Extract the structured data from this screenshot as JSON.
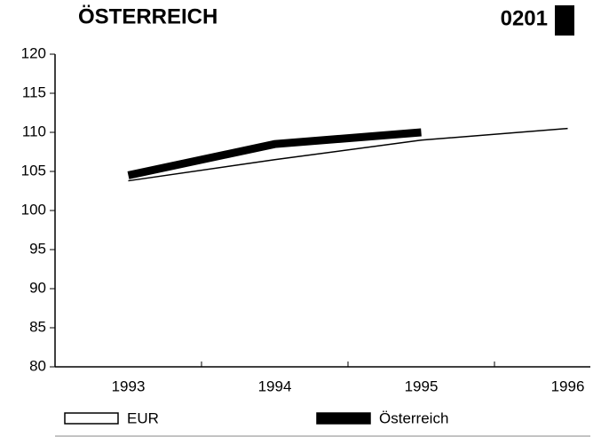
{
  "chart_data": {
    "type": "line",
    "title": "ÖSTERREICH",
    "code": "0201",
    "categories": [
      "1993",
      "1994",
      "1995",
      "1996"
    ],
    "series": [
      {
        "name": "EUR",
        "color": "#000000",
        "values": [
          103.8,
          106.5,
          109,
          110.5
        ]
      },
      {
        "name": "Österreich",
        "color": "#000000",
        "values": [
          104.5,
          108.5,
          110,
          null
        ]
      }
    ],
    "ylim": [
      80,
      120
    ],
    "yticks": [
      80,
      85,
      90,
      95,
      100,
      105,
      110,
      115,
      120
    ],
    "grid": false
  }
}
